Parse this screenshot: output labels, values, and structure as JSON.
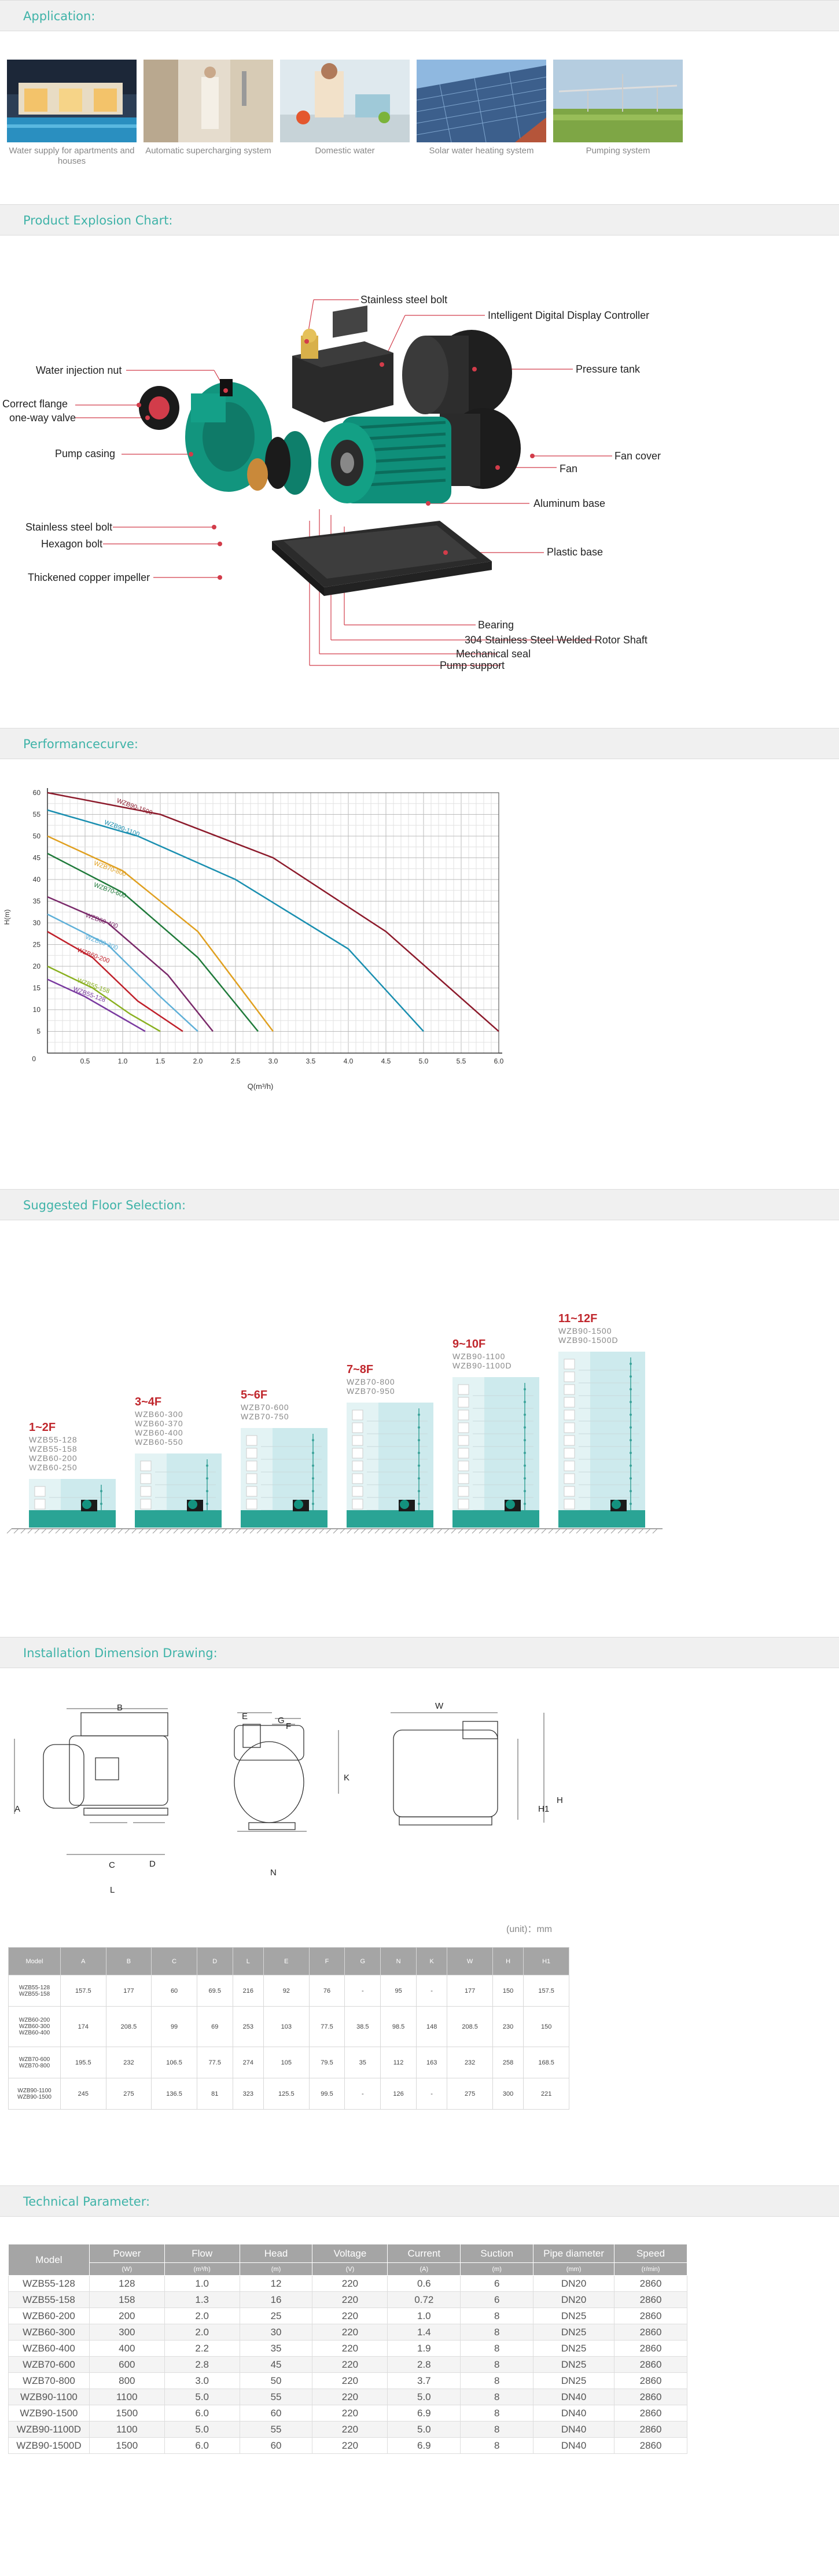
{
  "sections": {
    "application": "Application:",
    "explosion": "Product Explosion Chart:",
    "curve": "Performancecurve:",
    "floor": "Suggested Floor Selection:",
    "install": "Installation Dimension Drawing:",
    "tech": "Technical Parameter:"
  },
  "applications": [
    {
      "caption": "Water supply for apartments and houses"
    },
    {
      "caption": "Automatic supercharging system"
    },
    {
      "caption": "Domestic water"
    },
    {
      "caption": "Solar water heating system"
    },
    {
      "caption": "Pumping system"
    }
  ],
  "explosion_labels": {
    "stainless_bolt_top": "Stainless steel bolt",
    "controller": "Intelligent Digital Display Controller",
    "water_injection": "Water injection nut",
    "pressure_tank": "Pressure tank",
    "correct_flange": "Correct flange",
    "one_way_valve": "one-way valve",
    "fan_cover": "Fan cover",
    "pump_casing": "Pump casing",
    "fan": "Fan",
    "aluminum_base": "Aluminum base",
    "stainless_bolt": "Stainless steel bolt",
    "hexagon_bolt": "Hexagon bolt",
    "plastic_base": "Plastic base",
    "impeller": "Thickened copper impeller",
    "bearing": "Bearing",
    "rotor_shaft": "304 Stainless Steel Welded Rotor Shaft",
    "mech_seal": "Mechanical seal",
    "pump_support": "Pump support"
  },
  "chart_data": {
    "type": "line",
    "xlabel": "Q(m³/h)",
    "ylabel": "H(m)",
    "xlim": [
      0,
      6.0
    ],
    "ylim": [
      0,
      60
    ],
    "xticks": [
      "0.5",
      "1.0",
      "1.5",
      "2.0",
      "2.5",
      "3.0",
      "3.5",
      "4.0",
      "4.5",
      "5.0",
      "5.5",
      "6.0"
    ],
    "yticks": [
      "0",
      "5",
      "10",
      "15",
      "20",
      "25",
      "30",
      "35",
      "40",
      "45",
      "50",
      "55",
      "60"
    ],
    "series": [
      {
        "name": "WZB90-1500",
        "color": "#8c1a2b",
        "points": [
          [
            0,
            60
          ],
          [
            1.5,
            55
          ],
          [
            3,
            45
          ],
          [
            4.5,
            28
          ],
          [
            6,
            5
          ]
        ]
      },
      {
        "name": "WZB90-1100",
        "color": "#1a8fb0",
        "points": [
          [
            0,
            56
          ],
          [
            1.2,
            50
          ],
          [
            2.5,
            40
          ],
          [
            4,
            24
          ],
          [
            5,
            5
          ]
        ]
      },
      {
        "name": "WZB70-800",
        "color": "#e0a020",
        "points": [
          [
            0,
            50
          ],
          [
            1,
            42
          ],
          [
            2,
            28
          ],
          [
            3,
            5
          ]
        ]
      },
      {
        "name": "WZB70-600",
        "color": "#1f7a3a",
        "points": [
          [
            0,
            46
          ],
          [
            1,
            37
          ],
          [
            2,
            22
          ],
          [
            2.8,
            5
          ]
        ]
      },
      {
        "name": "WZB60-400",
        "color": "#7a2a6a",
        "points": [
          [
            0,
            36
          ],
          [
            0.8,
            30
          ],
          [
            1.6,
            18
          ],
          [
            2.2,
            5
          ]
        ]
      },
      {
        "name": "WZB60-300",
        "color": "#5fb0d8",
        "points": [
          [
            0,
            32
          ],
          [
            0.8,
            25
          ],
          [
            1.5,
            13
          ],
          [
            2,
            5
          ]
        ]
      },
      {
        "name": "WZB60-200",
        "color": "#c0202a",
        "points": [
          [
            0,
            28
          ],
          [
            0.6,
            22
          ],
          [
            1.2,
            12
          ],
          [
            1.8,
            5
          ]
        ]
      },
      {
        "name": "WZB55-158",
        "color": "#8ab020",
        "points": [
          [
            0,
            20
          ],
          [
            0.6,
            15
          ],
          [
            1.1,
            9
          ],
          [
            1.5,
            5
          ]
        ]
      },
      {
        "name": "WZB55-128",
        "color": "#7a3aa0",
        "points": [
          [
            0,
            17
          ],
          [
            0.5,
            13
          ],
          [
            1,
            8
          ],
          [
            1.3,
            5
          ]
        ]
      }
    ]
  },
  "floors": [
    {
      "title": "1~2F",
      "models": [
        "WZB55-128",
        "WZB55-158",
        "WZB60-200",
        "WZB60-250"
      ]
    },
    {
      "title": "3~4F",
      "models": [
        "WZB60-300",
        "WZB60-370",
        "WZB60-400",
        "WZB60-550"
      ]
    },
    {
      "title": "5~6F",
      "models": [
        "WZB70-600",
        "WZB70-750"
      ]
    },
    {
      "title": "7~8F",
      "models": [
        "WZB70-800",
        "WZB70-950"
      ]
    },
    {
      "title": "9~10F",
      "models": [
        "WZB90-1100",
        "WZB90-1100D"
      ]
    },
    {
      "title": "11~12F",
      "models": [
        "WZB90-1500",
        "WZB90-1500D"
      ]
    }
  ],
  "install_letters": {
    "B": "B",
    "A": "A",
    "C": "C",
    "D": "D",
    "L": "L",
    "E": "E",
    "G": "G",
    "F": "F",
    "K": "K",
    "N": "N",
    "W": "W",
    "H1": "H1",
    "H": "H"
  },
  "unit_note": "(unit)：mm",
  "dim_table": {
    "headers": [
      "Model",
      "A",
      "B",
      "C",
      "D",
      "L",
      "E",
      "F",
      "G",
      "N",
      "K",
      "W",
      "H",
      "H1"
    ],
    "rows": [
      {
        "model": [
          "WZB55-128",
          "WZB55-158"
        ],
        "vals": [
          "157.5",
          "177",
          "60",
          "69.5",
          "216",
          "92",
          "76",
          "-",
          "95",
          "-",
          "177",
          "150",
          "157.5"
        ]
      },
      {
        "model": [
          "WZB60-200",
          "WZB60-300",
          "WZB60-400"
        ],
        "vals": [
          "174",
          "208.5",
          "99",
          "69",
          "253",
          "103",
          "77.5",
          "38.5",
          "98.5",
          "148",
          "208.5",
          "230",
          "150"
        ]
      },
      {
        "model": [
          "WZB70-600",
          "WZB70-800"
        ],
        "vals": [
          "195.5",
          "232",
          "106.5",
          "77.5",
          "274",
          "105",
          "79.5",
          "35",
          "112",
          "163",
          "232",
          "258",
          "168.5"
        ]
      },
      {
        "model": [
          "WZB90-1100",
          "WZB90-1500"
        ],
        "vals": [
          "245",
          "275",
          "136.5",
          "81",
          "323",
          "125.5",
          "99.5",
          "-",
          "126",
          "-",
          "275",
          "300",
          "221"
        ]
      }
    ]
  },
  "tech_table": {
    "headers": [
      "Model",
      "Power",
      "Flow",
      "Head",
      "Voltage",
      "Current",
      "Suction",
      "Pipe diameter",
      "Speed"
    ],
    "units": [
      "",
      "(W)",
      "(m³/h)",
      "(m)",
      "(V)",
      "(A)",
      "(m)",
      "(mm)",
      "(r/min)"
    ],
    "rows": [
      [
        "WZB55-128",
        "128",
        "1.0",
        "12",
        "220",
        "0.6",
        "6",
        "DN20",
        "2860"
      ],
      [
        "WZB55-158",
        "158",
        "1.3",
        "16",
        "220",
        "0.72",
        "6",
        "DN20",
        "2860"
      ],
      [
        "WZB60-200",
        "200",
        "2.0",
        "25",
        "220",
        "1.0",
        "8",
        "DN25",
        "2860"
      ],
      [
        "WZB60-300",
        "300",
        "2.0",
        "30",
        "220",
        "1.4",
        "8",
        "DN25",
        "2860"
      ],
      [
        "WZB60-400",
        "400",
        "2.2",
        "35",
        "220",
        "1.9",
        "8",
        "DN25",
        "2860"
      ],
      [
        "WZB70-600",
        "600",
        "2.8",
        "45",
        "220",
        "2.8",
        "8",
        "DN25",
        "2860"
      ],
      [
        "WZB70-800",
        "800",
        "3.0",
        "50",
        "220",
        "3.7",
        "8",
        "DN25",
        "2860"
      ],
      [
        "WZB90-1100",
        "1100",
        "5.0",
        "55",
        "220",
        "5.0",
        "8",
        "DN40",
        "2860"
      ],
      [
        "WZB90-1500",
        "1500",
        "6.0",
        "60",
        "220",
        "6.9",
        "8",
        "DN40",
        "2860"
      ],
      [
        "WZB90-1100D",
        "1100",
        "5.0",
        "55",
        "220",
        "5.0",
        "8",
        "DN40",
        "2860"
      ],
      [
        "WZB90-1500D",
        "1500",
        "6.0",
        "60",
        "220",
        "6.9",
        "8",
        "DN40",
        "2860"
      ]
    ]
  }
}
